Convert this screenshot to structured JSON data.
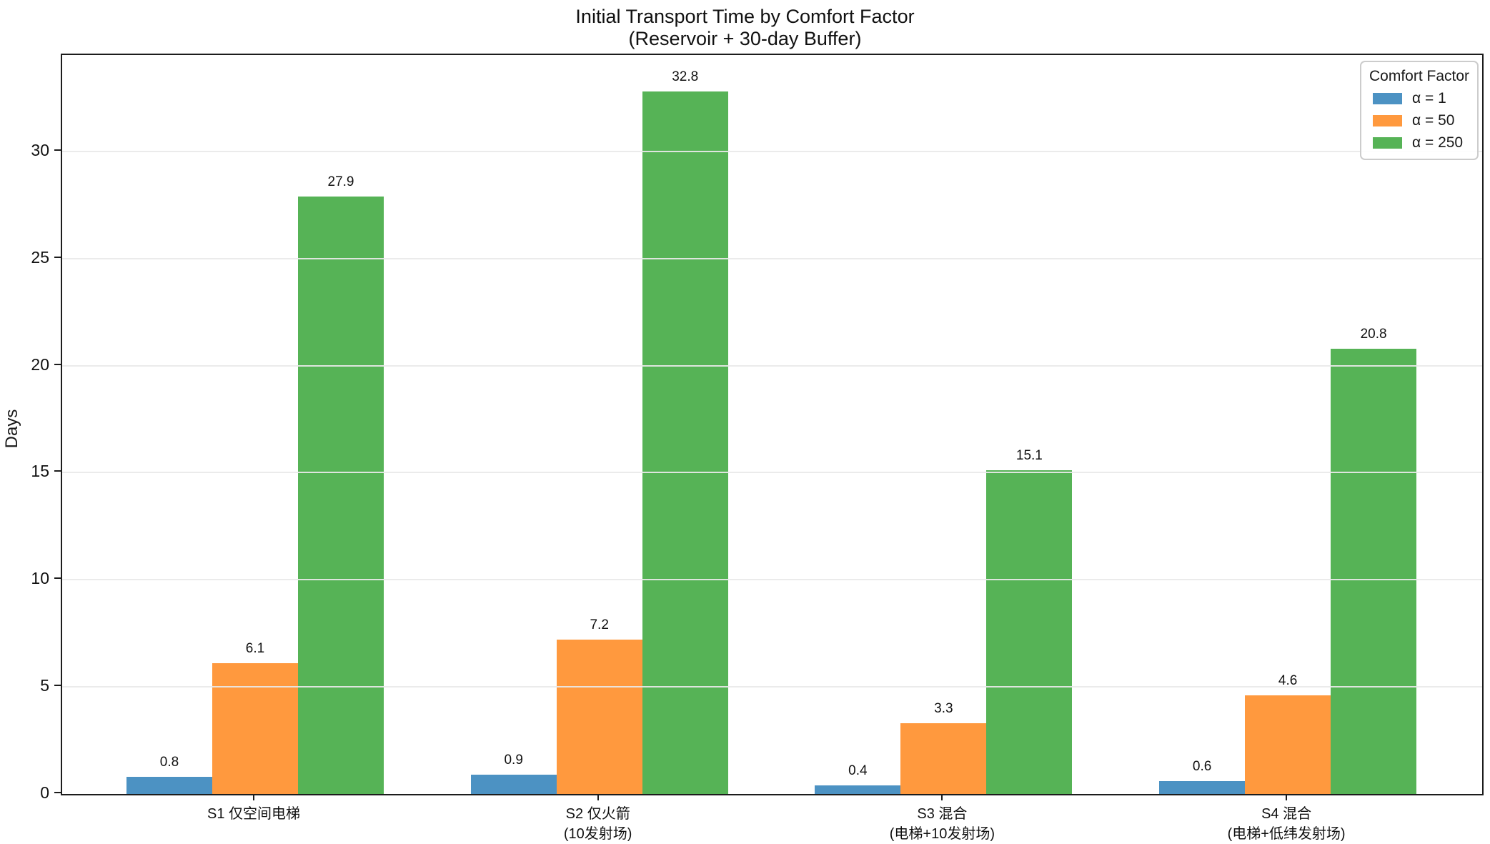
{
  "figure": {
    "background": "#ffffff",
    "frame_color": "#1c1c1c",
    "grid_color": "#e9e9e9"
  },
  "chart_data": {
    "type": "bar",
    "title": "Initial Transport Time by Comfort Factor",
    "subtitle": "(Reservoir + 30-day Buffer)",
    "xlabel": "",
    "ylabel": "Days",
    "ylim": [
      0,
      34.5
    ],
    "yticks": [
      0,
      5,
      10,
      15,
      20,
      25,
      30
    ],
    "grid": "horizontal",
    "value_label_decimals": 1,
    "categories": [
      {
        "line1": "S1 仅空间电梯",
        "line2": ""
      },
      {
        "line1": "S2 仅火箭",
        "line2": "(10发射场)"
      },
      {
        "line1": "S3 混合",
        "line2": "(电梯+10发射场)"
      },
      {
        "line1": "S4 混合",
        "line2": "(电梯+低纬发射场)"
      }
    ],
    "series": [
      {
        "name": "α = 1",
        "color": "#4C92C3",
        "values": [
          0.8,
          0.9,
          0.4,
          0.6
        ]
      },
      {
        "name": "α = 50",
        "color": "#FF993E",
        "values": [
          6.1,
          7.2,
          3.3,
          4.6
        ]
      },
      {
        "name": "α = 250",
        "color": "#56B356",
        "values": [
          27.9,
          32.8,
          15.1,
          20.8
        ]
      }
    ],
    "legend": {
      "title": "Comfort Factor",
      "position": "upper right"
    }
  }
}
